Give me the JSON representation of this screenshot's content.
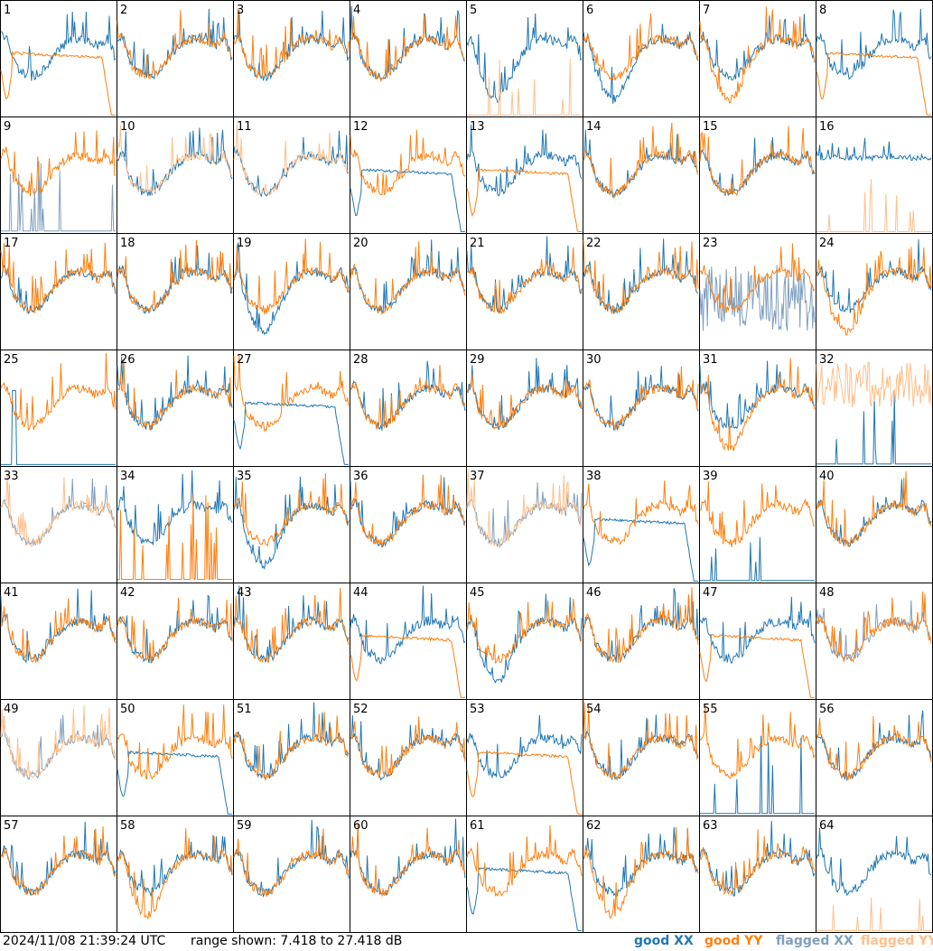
{
  "footer": {
    "timestamp": "2024/11/08 21:39:24 UTC",
    "range": "range shown: 7.418 to 27.418 dB",
    "legend": [
      {
        "key": "good_xx",
        "word": "good",
        "pol": "XX",
        "color": "#1f77b4"
      },
      {
        "key": "good_yy",
        "word": "good",
        "pol": "YY",
        "color": "#ff7f0e"
      },
      {
        "key": "flagged_xx",
        "word": "flagged",
        "pol": "XX",
        "color": "#7f9fbf"
      },
      {
        "key": "flagged_yy",
        "word": "flagged",
        "pol": "YY",
        "color": "#ffbf8a"
      }
    ]
  },
  "colors": {
    "good_xx": "#1f77b4",
    "good_yy": "#ff7f0e",
    "flagged_xx": "#7f9fbf",
    "flagged_yy": "#ffbf8a"
  },
  "chart_data": {
    "type": "line",
    "ylim": [
      7.418,
      27.418
    ],
    "yunit": "dB",
    "grid": false,
    "legend_placement": "bottom-right",
    "tiles": [
      {
        "label": "1",
        "xx": "normal",
        "yy": "droop"
      },
      {
        "label": "2",
        "xx": "normal",
        "yy": "normal"
      },
      {
        "label": "3",
        "xx": "normal",
        "yy": "normal"
      },
      {
        "label": "4",
        "xx": "normal",
        "yy": "normal"
      },
      {
        "label": "5",
        "xx": "deep",
        "yy": "spiky_flagged"
      },
      {
        "label": "6",
        "xx": "deep",
        "yy": "normal"
      },
      {
        "label": "7",
        "xx": "normal",
        "yy": "deep"
      },
      {
        "label": "8",
        "xx": "normal",
        "yy": "droop"
      },
      {
        "label": "9",
        "xx": "flagged_spiky",
        "yy": "normal"
      },
      {
        "label": "10",
        "xx": "normal",
        "yy": "flagged_deep"
      },
      {
        "label": "11",
        "xx": "normal",
        "yy": "flagged_deep"
      },
      {
        "label": "12",
        "xx": "droop",
        "yy": "normal"
      },
      {
        "label": "13",
        "xx": "normal",
        "yy": "droop"
      },
      {
        "label": "14",
        "xx": "normal",
        "yy": "normal"
      },
      {
        "label": "15",
        "xx": "normal",
        "yy": "normal"
      },
      {
        "label": "16",
        "xx": "flat",
        "yy": "spiky_flagged"
      },
      {
        "label": "17",
        "xx": "normal",
        "yy": "normal"
      },
      {
        "label": "18",
        "xx": "normal",
        "yy": "normal"
      },
      {
        "label": "19",
        "xx": "deep",
        "yy": "normal"
      },
      {
        "label": "20",
        "xx": "normal",
        "yy": "normal"
      },
      {
        "label": "21",
        "xx": "normal",
        "yy": "normal"
      },
      {
        "label": "22",
        "xx": "normal",
        "yy": "normal"
      },
      {
        "label": "23",
        "xx": "flagged_noisy",
        "yy": "normal"
      },
      {
        "label": "24",
        "xx": "normal",
        "yy": "deep"
      },
      {
        "label": "25",
        "xx": "spiky_one",
        "yy": "normal"
      },
      {
        "label": "26",
        "xx": "normal",
        "yy": "normal"
      },
      {
        "label": "27",
        "xx": "droop",
        "yy": "normal"
      },
      {
        "label": "28",
        "xx": "normal",
        "yy": "normal"
      },
      {
        "label": "29",
        "xx": "normal",
        "yy": "normal"
      },
      {
        "label": "30",
        "xx": "normal",
        "yy": "normal"
      },
      {
        "label": "31",
        "xx": "normal",
        "yy": "deep"
      },
      {
        "label": "32",
        "xx": "spiky_low",
        "yy": "flagged_noisy_high"
      },
      {
        "label": "33",
        "xx": "flagged_normal",
        "yy": "flagged_normal"
      },
      {
        "label": "34",
        "xx": "normal",
        "yy": "low_spiky"
      },
      {
        "label": "35",
        "xx": "deep",
        "yy": "normal"
      },
      {
        "label": "36",
        "xx": "normal",
        "yy": "normal"
      },
      {
        "label": "37",
        "xx": "flagged_normal",
        "yy": "flagged_normal"
      },
      {
        "label": "38",
        "xx": "droop",
        "yy": "normal"
      },
      {
        "label": "39",
        "xx": "spiky_low",
        "yy": "normal"
      },
      {
        "label": "40",
        "xx": "normal",
        "yy": "normal"
      },
      {
        "label": "41",
        "xx": "normal",
        "yy": "normal"
      },
      {
        "label": "42",
        "xx": "normal",
        "yy": "normal"
      },
      {
        "label": "43",
        "xx": "normal",
        "yy": "normal"
      },
      {
        "label": "44",
        "xx": "normal",
        "yy": "droop"
      },
      {
        "label": "45",
        "xx": "deep",
        "yy": "normal"
      },
      {
        "label": "46",
        "xx": "normal",
        "yy": "normal"
      },
      {
        "label": "47",
        "xx": "normal",
        "yy": "droop"
      },
      {
        "label": "48",
        "xx": "flagged_deep",
        "yy": "normal"
      },
      {
        "label": "49",
        "xx": "flagged_deep",
        "yy": "flagged_normal"
      },
      {
        "label": "50",
        "xx": "droop",
        "yy": "normal"
      },
      {
        "label": "51",
        "xx": "normal",
        "yy": "normal"
      },
      {
        "label": "52",
        "xx": "normal",
        "yy": "normal"
      },
      {
        "label": "53",
        "xx": "normal",
        "yy": "droop"
      },
      {
        "label": "54",
        "xx": "normal",
        "yy": "normal"
      },
      {
        "label": "55",
        "xx": "spiky_low",
        "yy": "normal"
      },
      {
        "label": "56",
        "xx": "normal",
        "yy": "normal"
      },
      {
        "label": "57",
        "xx": "normal",
        "yy": "normal"
      },
      {
        "label": "58",
        "xx": "normal",
        "yy": "deep"
      },
      {
        "label": "59",
        "xx": "normal",
        "yy": "normal"
      },
      {
        "label": "60",
        "xx": "normal",
        "yy": "normal"
      },
      {
        "label": "61",
        "xx": "droop",
        "yy": "normal"
      },
      {
        "label": "62",
        "xx": "normal",
        "yy": "deep"
      },
      {
        "label": "63",
        "xx": "normal",
        "yy": "normal"
      },
      {
        "label": "64",
        "xx": "normal",
        "yy": "spiky_flagged"
      }
    ]
  }
}
